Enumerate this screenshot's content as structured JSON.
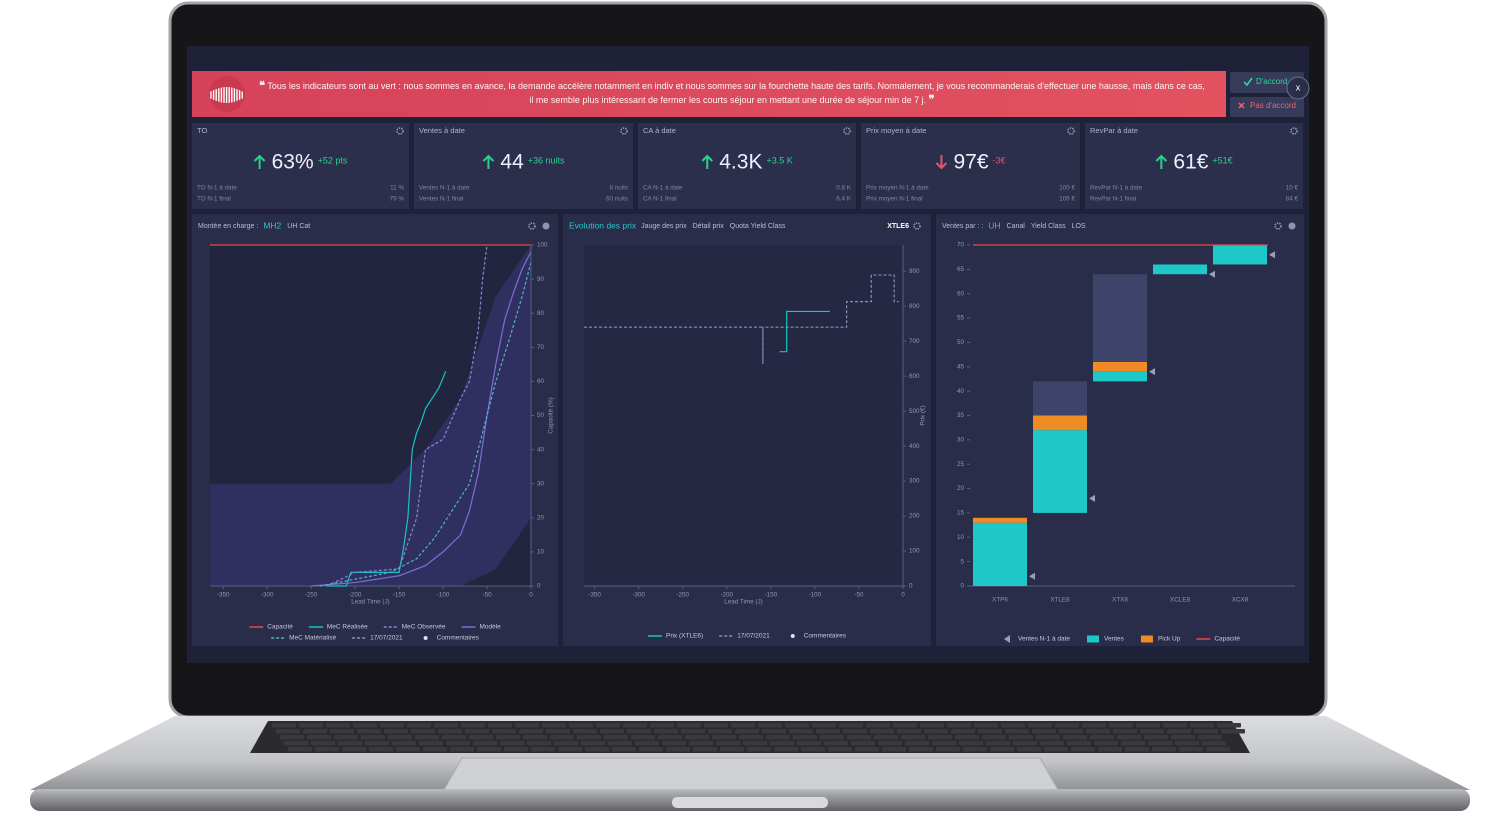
{
  "banner": {
    "open_quote": "❝",
    "text": "Tous les indicateurs sont au vert : nous sommes en avance, la demande accélère notamment en indiv et nous sommes sur la fourchette haute des tarifs. Normalement, je vous recommanderais d'effectuer une hausse, mais dans ce cas, il me semble plus intéressant de fermer les courts séjour en mettant une durée de séjour min de 7 j.",
    "close_quote": "❞",
    "agree": "D'accord",
    "disagree": "Pas d'accord",
    "close": "x"
  },
  "kpis": [
    {
      "title": "TO",
      "value": "63%",
      "trend": "up",
      "delta": "+52 pts",
      "rows": [
        {
          "label": "TO N-1 à date",
          "value": "11 %"
        },
        {
          "label": "TO N-1 final",
          "value": "79 %"
        }
      ]
    },
    {
      "title": "Ventes à date",
      "value": "44",
      "trend": "up",
      "delta": "+36 nuits",
      "rows": [
        {
          "label": "Ventes N-1 à date",
          "value": "8 nuits"
        },
        {
          "label": "Ventes N-1 final",
          "value": "60 nuits"
        }
      ]
    },
    {
      "title": "CA à date",
      "value": "4.3K",
      "trend": "up",
      "delta": "+3.5 K",
      "rows": [
        {
          "label": "CA N-1 à date",
          "value": "0.8 K"
        },
        {
          "label": "CA N-1 final",
          "value": "6.4 K"
        }
      ]
    },
    {
      "title": "Prix moyen à date",
      "value": "97€",
      "trend": "down",
      "delta": "-3€",
      "rows": [
        {
          "label": "Prix moyen N-1 à date",
          "value": "100 €"
        },
        {
          "label": "Prix moyen N-1 final",
          "value": "106 €"
        }
      ]
    },
    {
      "title": "RevPar à date",
      "value": "61€",
      "trend": "up",
      "delta": "+51€",
      "rows": [
        {
          "label": "RevPar N-1 à date",
          "value": "10 €"
        },
        {
          "label": "RevPar N-1 final",
          "value": "84 €"
        }
      ]
    }
  ],
  "chart_data": [
    {
      "type": "line",
      "tabs_label": "Montée en charge :",
      "tabs": [
        "MH2",
        "UH Cat"
      ],
      "active_tab": 0,
      "xlabel": "Lead Time (J)",
      "ylabel": "Capacité (%)",
      "y_axis": "right",
      "xlim": [
        -365,
        0
      ],
      "xticks": [
        -350,
        -300,
        -250,
        -200,
        -150,
        -100,
        -50,
        0
      ],
      "ylim": [
        0,
        100
      ],
      "yticks": [
        0,
        10,
        20,
        30,
        40,
        50,
        60,
        70,
        80,
        90,
        100
      ],
      "band": {
        "color": "#34356e",
        "x": [
          -365,
          -240,
          -200,
          -160,
          -120,
          -80,
          -40,
          0
        ],
        "lower": [
          0,
          0,
          0,
          0,
          0,
          0,
          5,
          20
        ],
        "upper": [
          30,
          30,
          30,
          30,
          40,
          55,
          85,
          100
        ]
      },
      "series": [
        {
          "name": "Capacité",
          "color": "#e5484d",
          "style": "solid",
          "x": [
            -365,
            0
          ],
          "values": [
            100,
            100
          ]
        },
        {
          "name": "MeC Réalisée",
          "color": "#19c3c3",
          "style": "solid",
          "x": [
            -232,
            -210,
            -205,
            -150,
            -145,
            -140,
            -135,
            -130,
            -125,
            -120,
            -115,
            -110,
            -105,
            -100,
            -97
          ],
          "values": [
            0,
            0,
            4,
            4,
            11,
            20,
            40,
            45,
            48,
            52,
            54,
            56,
            58,
            61,
            63
          ]
        },
        {
          "name": "MeC Observée",
          "color": "#8a84d8",
          "style": "dashed",
          "x": [
            -232,
            -200,
            -150,
            -130,
            -120,
            -100,
            -80,
            -70,
            -60,
            -55,
            -50
          ],
          "values": [
            0,
            4,
            5,
            20,
            40,
            43,
            55,
            60,
            75,
            90,
            100
          ]
        },
        {
          "name": "Modèle",
          "color": "#7b6fd6",
          "style": "solid",
          "x": [
            -250,
            -200,
            -150,
            -120,
            -100,
            -80,
            -70,
            -60,
            -50,
            -40,
            -30,
            -20,
            -10,
            0
          ],
          "values": [
            0,
            1,
            3,
            6,
            10,
            15,
            22,
            33,
            50,
            65,
            78,
            86,
            93,
            98
          ]
        },
        {
          "name": "MeC Matérialisé",
          "color": "#4fb3c8",
          "style": "dashed",
          "x": [
            -240,
            -200,
            -160,
            -130,
            -110,
            -90,
            -70,
            -55,
            -40,
            -25,
            -10,
            0
          ],
          "values": [
            0,
            2,
            4,
            8,
            14,
            22,
            30,
            45,
            60,
            72,
            85,
            95
          ]
        }
      ],
      "legend_extra": [
        {
          "name": "17/07/2021",
          "color": "#8a8fb0",
          "style": "dashed"
        },
        {
          "name": "Commentaires",
          "color": "#d6e6f0",
          "style": "dot"
        }
      ]
    },
    {
      "type": "line",
      "tabs_label": "Evolution des prix",
      "tabs": [
        "Jauge des prix",
        "Détail prix",
        "Quota Yield Class"
      ],
      "active_tab": -1,
      "selector": "XTLE6",
      "xlabel": "Lead Time (J)",
      "ylabel": "Prix (€)",
      "y_axis": "right",
      "xlim": [
        -362,
        0
      ],
      "xticks": [
        -350,
        -300,
        -250,
        -200,
        -150,
        -100,
        -50,
        0
      ],
      "ylim": [
        0,
        975
      ],
      "yticks": [
        0,
        100,
        200,
        300,
        400,
        500,
        600,
        700,
        800,
        900
      ],
      "series": [
        {
          "name": "Prix (XTLE6)",
          "color": "#19c3c3",
          "style": "solid",
          "x": [
            -140,
            -132,
            -132,
            -83
          ],
          "values": [
            670,
            670,
            785,
            785
          ]
        },
        {
          "name": "17/07/2021",
          "color": "#8a8fb0",
          "style": "dashed",
          "x": [
            -362,
            -159,
            -159,
            -159,
            -64,
            -64,
            -36,
            -36,
            -10,
            -10,
            -5
          ],
          "values": [
            740,
            740,
            635,
            740,
            740,
            813,
            813,
            889,
            889,
            813,
            813
          ]
        }
      ],
      "legend_extra": [
        {
          "name": "Commentaires",
          "color": "#d6e6f0",
          "style": "dot"
        }
      ]
    },
    {
      "type": "bar",
      "tabs_label": "Ventes par : :",
      "tabs": [
        "UH",
        "Canal",
        "Yield Class",
        "LOS"
      ],
      "active_tab": 0,
      "y_axis": "left",
      "categories": [
        "XTP6",
        "XTLE8",
        "XTX8",
        "XCLE8",
        "XCX8"
      ],
      "ylim": [
        0,
        70
      ],
      "yticks": [
        0,
        5,
        10,
        15,
        20,
        25,
        30,
        35,
        40,
        45,
        50,
        55,
        60,
        65,
        70
      ],
      "offsets": [
        0,
        15,
        42,
        64,
        66
      ],
      "series": [
        {
          "name": "Ventes",
          "color": "#1ec8c8",
          "values": [
            13,
            17,
            2,
            2,
            4
          ]
        },
        {
          "name": "Pick Up",
          "color": "#f08a24",
          "values": [
            1,
            3,
            2,
            0,
            0
          ]
        }
      ],
      "remaining": {
        "color": "#3e4369",
        "values": [
          0,
          7,
          18,
          0,
          0
        ]
      },
      "markers": {
        "name": "Ventes N-1 à date",
        "color": "#9aa0b8",
        "values": [
          2,
          18,
          44,
          64,
          68
        ]
      },
      "capacity": {
        "name": "Capacité",
        "color": "#e5484d",
        "value": 70
      }
    }
  ]
}
